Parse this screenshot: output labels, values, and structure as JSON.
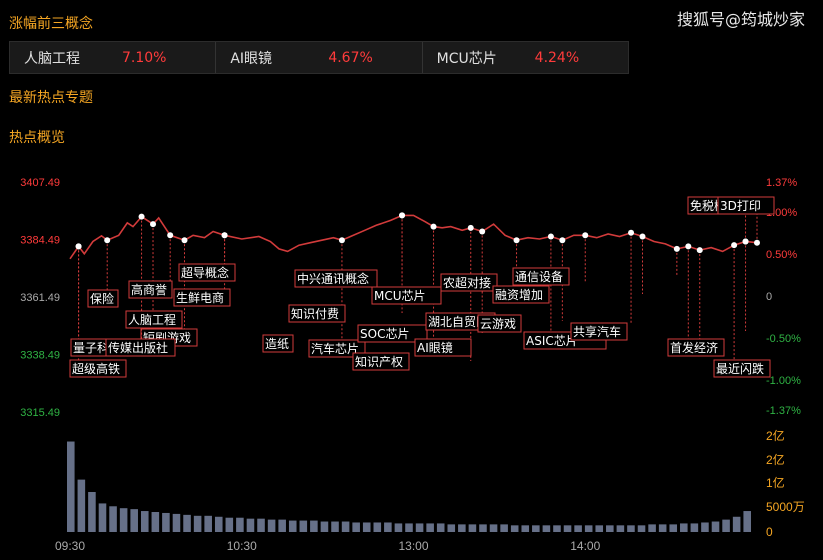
{
  "watermark": "搜狐号@筠城炒家",
  "section_top3": "涨幅前三概念",
  "top3": [
    {
      "name": "人脑工程",
      "pct": "7.10%"
    },
    {
      "name": "AI眼镜",
      "pct": "4.67%"
    },
    {
      "name": "MCU芯片",
      "pct": "4.24%"
    }
  ],
  "section_hot": "最新热点专题",
  "section_overview": "热点概览",
  "colors": {
    "accent": "#f5a623",
    "up": "#ff3b3b",
    "down": "#2fb344",
    "line": "#d23b3b"
  },
  "chart_data": {
    "type": "line",
    "y_ticks_left": [
      "3407.49",
      "3384.49",
      "3361.49",
      "3338.49",
      "3315.49"
    ],
    "y_ticks_right": [
      "1.37%",
      "1.00%",
      "0.50%",
      "0",
      "-0.50%",
      "-1.00%",
      "-1.37%"
    ],
    "volume_ticks": [
      "2亿",
      "2亿",
      "1亿",
      "5000万",
      "0"
    ],
    "x_ticks": [
      "09:30",
      "10:30",
      "13:00",
      "14:00"
    ],
    "ylim": [
      3315.49,
      3407.49
    ],
    "x_minutes": [
      0,
      3,
      5,
      8,
      11,
      13,
      17,
      20,
      22,
      25,
      29,
      31,
      35,
      40,
      43,
      47,
      50,
      54,
      60,
      66,
      70,
      73,
      76,
      80,
      84,
      88,
      92,
      95,
      98,
      103,
      107,
      112,
      116,
      120,
      124,
      127,
      130,
      133,
      137,
      140,
      144,
      148,
      152,
      156,
      160,
      164,
      168,
      172,
      176,
      180,
      184,
      188,
      192,
      196,
      200,
      204,
      208,
      212,
      216,
      220,
      224,
      228,
      232,
      236,
      240
    ],
    "y_values": [
      3376.5,
      3381.5,
      3378.5,
      3383.5,
      3385.8,
      3384.0,
      3386.0,
      3391.0,
      3389.5,
      3393.5,
      3390.5,
      3393.0,
      3386.0,
      3384.0,
      3386.0,
      3385.0,
      3387.5,
      3386.0,
      3384.5,
      3385.5,
      3383.5,
      3380.5,
      3379.5,
      3382.0,
      3383.0,
      3384.0,
      3385.0,
      3384.0,
      3385.5,
      3388.0,
      3390.0,
      3392.0,
      3394.0,
      3394.0,
      3391.5,
      3389.5,
      3389.0,
      3389.5,
      3388.0,
      3389.0,
      3387.5,
      3390.5,
      3386.0,
      3384.0,
      3385.0,
      3384.5,
      3385.5,
      3384.0,
      3386.0,
      3386.0,
      3385.0,
      3386.5,
      3385.5,
      3387.0,
      3385.5,
      3383.5,
      3382.5,
      3380.5,
      3381.5,
      3380.0,
      3381.0,
      3379.5,
      3382.0,
      3383.5,
      3383.0
    ],
    "volume": [
      0.95,
      0.55,
      0.42,
      0.3,
      0.27,
      0.25,
      0.24,
      0.22,
      0.21,
      0.2,
      0.19,
      0.18,
      0.17,
      0.17,
      0.16,
      0.15,
      0.15,
      0.14,
      0.14,
      0.13,
      0.13,
      0.12,
      0.12,
      0.12,
      0.11,
      0.11,
      0.11,
      0.1,
      0.1,
      0.1,
      0.1,
      0.09,
      0.09,
      0.09,
      0.09,
      0.09,
      0.08,
      0.08,
      0.08,
      0.08,
      0.08,
      0.08,
      0.07,
      0.07,
      0.07,
      0.07,
      0.07,
      0.07,
      0.07,
      0.07,
      0.07,
      0.07,
      0.07,
      0.07,
      0.07,
      0.08,
      0.08,
      0.08,
      0.09,
      0.09,
      0.1,
      0.11,
      0.13,
      0.16,
      0.22
    ],
    "annotations": [
      "超级高铁",
      "量子科技",
      "保险",
      "短剧游戏",
      "传媒出版社",
      "人脑工程",
      "高商誉",
      "生鲜电商",
      "超导概念",
      "造纸",
      "知识付费",
      "中兴通讯概念",
      "汽车芯片",
      "知识产权",
      "SOC芯片",
      "MCU芯片",
      "AI眼镜",
      "湖北自贸区",
      "农超对接",
      "云游戏",
      "融资增加",
      "通信设备",
      "ASIC芯片",
      "共享汽车",
      "首发经济",
      "最近闪跌",
      "免税概念",
      "3D打印"
    ]
  }
}
